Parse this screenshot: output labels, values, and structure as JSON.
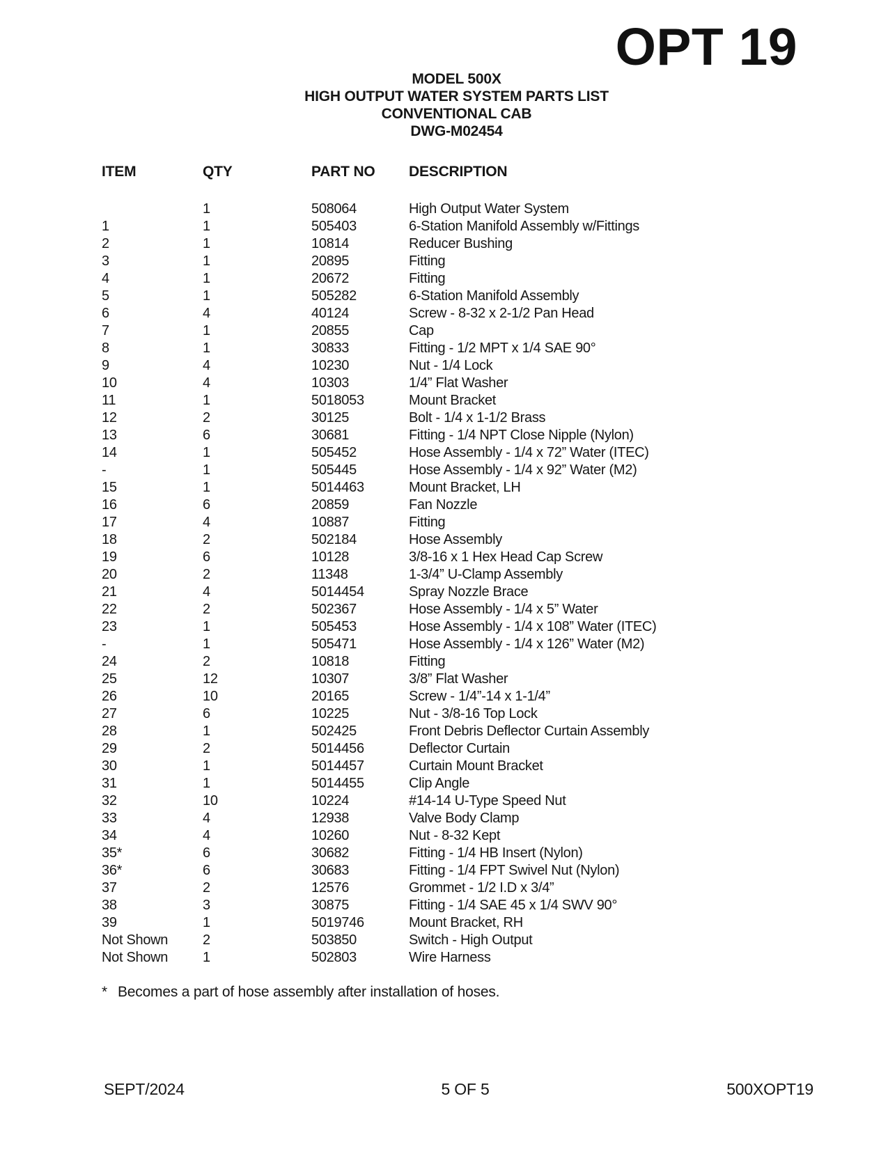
{
  "header": {
    "opt_label": "OPT 19"
  },
  "title": {
    "lines": [
      "MODEL 500X",
      "HIGH OUTPUT WATER SYSTEM PARTS LIST",
      "CONVENTIONAL CAB",
      "DWG-M02454"
    ]
  },
  "table": {
    "columns": [
      "ITEM",
      "QTY",
      "PART NO",
      "DESCRIPTION"
    ],
    "rows": [
      [
        "",
        "1",
        "508064",
        "High Output Water System"
      ],
      [
        "1",
        "1",
        "505403",
        "6-Station Manifold Assembly w/Fittings"
      ],
      [
        "2",
        "1",
        "10814",
        "Reducer Bushing"
      ],
      [
        "3",
        "1",
        "20895",
        "Fitting"
      ],
      [
        "4",
        "1",
        "20672",
        "Fitting"
      ],
      [
        "5",
        "1",
        "505282",
        "6-Station Manifold Assembly"
      ],
      [
        "6",
        "4",
        "40124",
        "Screw - 8-32 x 2-1/2 Pan Head"
      ],
      [
        "7",
        "1",
        "20855",
        "Cap"
      ],
      [
        "8",
        "1",
        "30833",
        "Fitting - 1/2 MPT x 1/4 SAE 90°"
      ],
      [
        "9",
        "4",
        "10230",
        "Nut - 1/4 Lock"
      ],
      [
        "10",
        "4",
        "10303",
        "1/4” Flat Washer"
      ],
      [
        "11",
        "1",
        "5018053",
        "Mount Bracket"
      ],
      [
        "12",
        "2",
        "30125",
        "Bolt - 1/4 x 1-1/2 Brass"
      ],
      [
        "13",
        "6",
        "30681",
        "Fitting - 1/4 NPT Close Nipple (Nylon)"
      ],
      [
        "14",
        "1",
        "505452",
        "Hose Assembly - 1/4 x 72” Water (ITEC)"
      ],
      [
        "-",
        "1",
        "505445",
        "Hose Assembly - 1/4 x 92” Water (M2)"
      ],
      [
        "15",
        "1",
        "5014463",
        "Mount Bracket, LH"
      ],
      [
        "16",
        "6",
        "20859",
        "Fan Nozzle"
      ],
      [
        "17",
        "4",
        "10887",
        "Fitting"
      ],
      [
        "18",
        "2",
        "502184",
        "Hose Assembly"
      ],
      [
        "19",
        "6",
        "10128",
        "3/8-16 x 1 Hex Head Cap Screw"
      ],
      [
        "20",
        "2",
        "11348",
        "1-3/4” U-Clamp Assembly"
      ],
      [
        "21",
        "4",
        "5014454",
        "Spray Nozzle Brace"
      ],
      [
        "22",
        "2",
        "502367",
        "Hose Assembly - 1/4 x 5” Water"
      ],
      [
        "23",
        "1",
        "505453",
        "Hose Assembly - 1/4 x 108” Water (ITEC)"
      ],
      [
        "-",
        "1",
        "505471",
        "Hose Assembly - 1/4 x 126” Water (M2)"
      ],
      [
        "24",
        "2",
        "10818",
        "Fitting"
      ],
      [
        "25",
        "12",
        "10307",
        "3/8” Flat Washer"
      ],
      [
        "26",
        "10",
        "20165",
        "Screw - 1/4”-14 x 1-1/4”"
      ],
      [
        "27",
        "6",
        "10225",
        "Nut - 3/8-16 Top Lock"
      ],
      [
        "28",
        "1",
        "502425",
        "Front Debris Deflector Curtain Assembly"
      ],
      [
        "29",
        "2",
        "5014456",
        "Deflector Curtain"
      ],
      [
        "30",
        "1",
        "5014457",
        "Curtain Mount Bracket"
      ],
      [
        "31",
        "1",
        "5014455",
        "Clip Angle"
      ],
      [
        "32",
        "10",
        "10224",
        "#14-14 U-Type Speed Nut"
      ],
      [
        "33",
        "4",
        "12938",
        "Valve Body Clamp"
      ],
      [
        "34",
        "4",
        "10260",
        "Nut - 8-32 Kept"
      ],
      [
        "35*",
        "6",
        "30682",
        "Fitting - 1/4 HB Insert (Nylon)"
      ],
      [
        "36*",
        "6",
        "30683",
        "Fitting - 1/4 FPT Swivel Nut (Nylon)"
      ],
      [
        "37",
        "2",
        "12576",
        "Grommet - 1/2 I.D x 3/4”"
      ],
      [
        "38",
        "3",
        "30875",
        "Fitting - 1/4 SAE 45 x 1/4 SWV 90°"
      ],
      [
        "39",
        "1",
        "5019746",
        "Mount Bracket, RH"
      ],
      [
        "Not Shown",
        "2",
        "503850",
        "Switch - High Output"
      ],
      [
        "Not Shown",
        "1",
        "502803",
        "Wire Harness"
      ]
    ]
  },
  "footnote": {
    "marker": "*",
    "text": "Becomes a part of hose assembly after installation of hoses."
  },
  "footer": {
    "date": "SEPT/2024",
    "page": "5 OF 5",
    "doc_code": "500XOPT19"
  },
  "colors": {
    "text": "#161616",
    "background": "#ffffff"
  }
}
